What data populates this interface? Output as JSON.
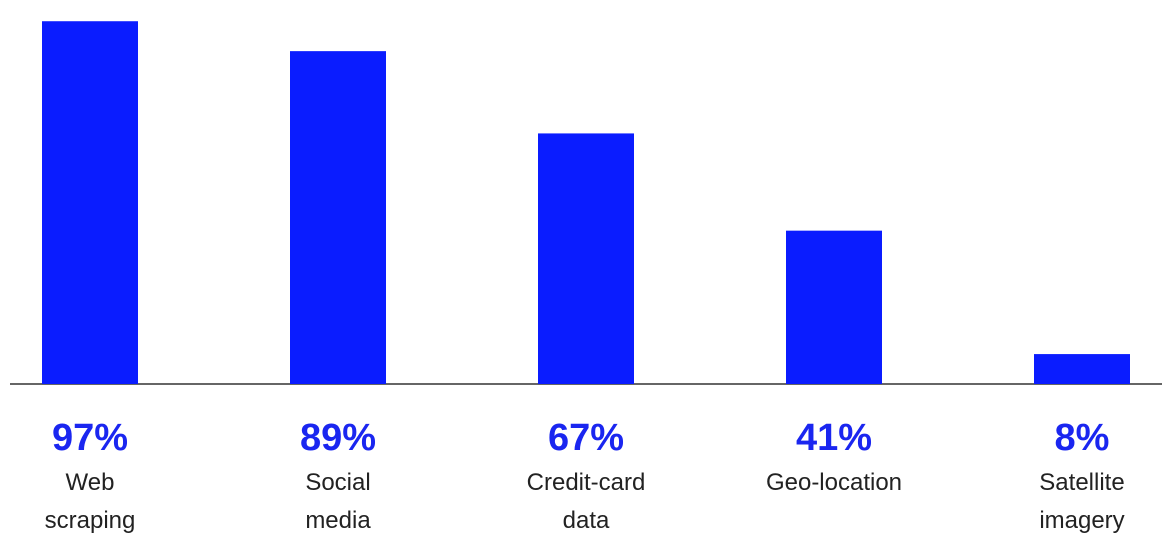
{
  "chart_data": {
    "type": "bar",
    "categories": [
      [
        "Web",
        "scraping"
      ],
      [
        "Social",
        "media"
      ],
      [
        "Credit-card",
        "data"
      ],
      [
        "Geo-location"
      ],
      [
        "Satellite",
        "imagery"
      ]
    ],
    "values": [
      97,
      89,
      67,
      41,
      8
    ],
    "value_labels": [
      "97%",
      "89%",
      "67%",
      "41%",
      "8%"
    ],
    "ylim": [
      0,
      100
    ],
    "grid": false,
    "legend": "none",
    "colors": {
      "bar": "#0a1cff",
      "value_text": "#1a26f0",
      "axis": "#333333"
    }
  }
}
